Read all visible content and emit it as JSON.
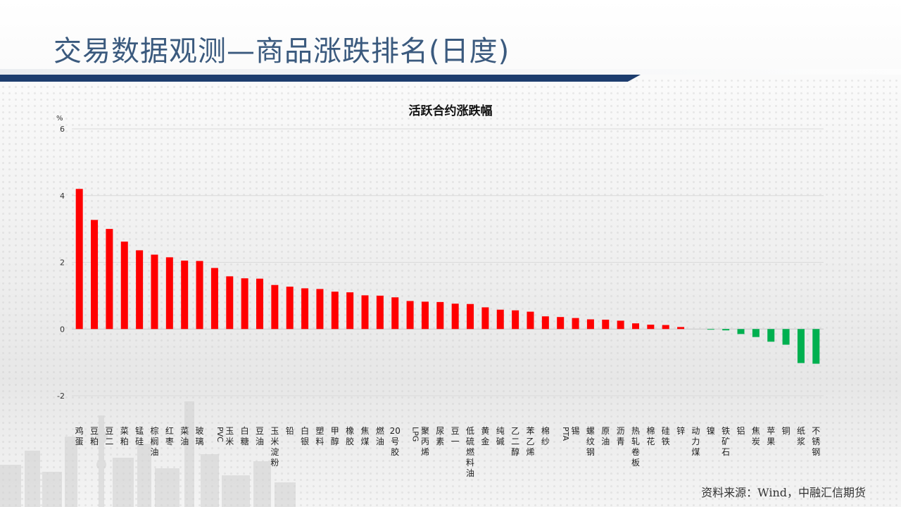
{
  "page": {
    "title": "交易数据观测—商品涨跌排名(日度)",
    "source": "资料来源：Wind，中融汇信期货"
  },
  "colors": {
    "positive": "#ff0000",
    "negative": "#00b050",
    "title": "#3b5a7e",
    "bar": "#1d3d6e"
  },
  "chart_data": {
    "type": "bar",
    "title": "活跃合约涨跌幅",
    "ylabel": "%",
    "ylim": [
      -2,
      6
    ],
    "yticks": [
      -2,
      0,
      2,
      4,
      6
    ],
    "grid": true,
    "categories": [
      "鸡蛋",
      "豆粕",
      "豆二",
      "菜粕",
      "锰硅",
      "棕榈油",
      "红枣",
      "菜油",
      "玻璃",
      "PVC",
      "玉米",
      "白糖",
      "豆油",
      "玉米淀粉",
      "铅",
      "白银",
      "塑料",
      "甲醇",
      "橡胶",
      "焦煤",
      "燃油",
      "20号胶",
      "LPG",
      "聚丙烯",
      "尿素",
      "豆一",
      "低硫燃料油",
      "黄金",
      "纯碱",
      "乙二醇",
      "苯乙烯",
      "棉纱",
      "PTA",
      "锡",
      "螺纹钢",
      "原油",
      "沥青",
      "热轧卷板",
      "棉花",
      "硅铁",
      "锌",
      "动力煤",
      "镍",
      "铁矿石",
      "铝",
      "焦炭",
      "苹果",
      "铜",
      "纸浆",
      "不锈钢"
    ],
    "values": [
      4.2,
      3.27,
      3.0,
      2.62,
      2.36,
      2.23,
      2.15,
      2.05,
      2.04,
      1.83,
      1.58,
      1.52,
      1.51,
      1.32,
      1.27,
      1.22,
      1.2,
      1.12,
      1.1,
      1.01,
      1.0,
      0.95,
      0.84,
      0.82,
      0.81,
      0.76,
      0.75,
      0.65,
      0.58,
      0.56,
      0.52,
      0.38,
      0.36,
      0.33,
      0.29,
      0.28,
      0.25,
      0.17,
      0.13,
      0.12,
      0.06,
      0.0,
      -0.02,
      -0.04,
      -0.15,
      -0.24,
      -0.38,
      -0.47,
      -1.02,
      -1.04
    ]
  }
}
